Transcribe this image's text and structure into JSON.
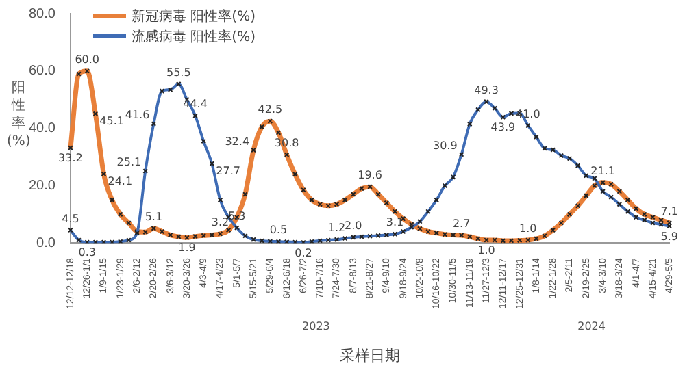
{
  "chart_data": {
    "type": "line",
    "ylabel": "阳性率(%)",
    "xlabel": "采样日期",
    "categories": [
      "12/12-12/18",
      null,
      "12/26-1/1",
      null,
      "1/9-1/15",
      null,
      "1/23-1/29",
      null,
      "2/6-2/12",
      null,
      "2/20-2/26",
      null,
      "3/6-3/12",
      null,
      "3/20-3/26",
      null,
      "4/3-4/9",
      null,
      "4/17-4/23",
      null,
      "5/1-5/7",
      null,
      "5/15-5/21",
      null,
      "5/29-6/4",
      null,
      "6/12-6/18",
      null,
      "6/26-7/2",
      null,
      "7/10-7/16",
      null,
      "7/24-7/30",
      null,
      "8/7-8/13",
      null,
      "8/21-8/27",
      null,
      "9/4-9/10",
      null,
      "9/18-9/24",
      null,
      "10/2-10/8",
      null,
      "10/16-10/22",
      null,
      "10/30-11/5",
      null,
      "11/13-11/19",
      null,
      "11/27-12/3",
      null,
      "12/11-12/17",
      null,
      "12/25-12/31",
      null,
      "1/8-1/14",
      null,
      "1/22-1/28",
      null,
      "2/5-2/11",
      null,
      "2/19-2/25",
      null,
      "3/4-3/10",
      null,
      "3/18-3/24",
      null,
      "4/1-4/7",
      null,
      "4/15-4/21",
      null,
      "4/29-5/5"
    ],
    "series": [
      {
        "name": "新冠病毒 阳性率(%)",
        "color": "#e8803a",
        "values": [
          33.2,
          59,
          60.0,
          45.1,
          24.1,
          15,
          10,
          7,
          4,
          3.8,
          5.1,
          4,
          2.8,
          2.2,
          1.9,
          2.3,
          2.6,
          2.8,
          3.2,
          4.5,
          9,
          17,
          32.4,
          40.5,
          42.5,
          38.5,
          30.8,
          24,
          18.5,
          15,
          13.5,
          13,
          13.5,
          15,
          17,
          19,
          19.6,
          17,
          14,
          11,
          8.5,
          6.5,
          5,
          4,
          3.5,
          3,
          2.8,
          2.7,
          2.2,
          1.5,
          1.0,
          1.0,
          0.8,
          0.8,
          0.9,
          1.0,
          1.5,
          2.5,
          4.5,
          7,
          10,
          13,
          16.5,
          20,
          21.1,
          20.5,
          18,
          15,
          12,
          10,
          9,
          8,
          7.1
        ],
        "value_labels": [
          "33.2",
          null,
          "60.0",
          "45.1",
          "24.1",
          null,
          null,
          null,
          null,
          null,
          "5.1",
          null,
          null,
          null,
          "1.9",
          null,
          null,
          null,
          "3.2",
          null,
          null,
          null,
          "32.4",
          null,
          "42.5",
          null,
          "30.8",
          null,
          null,
          null,
          null,
          null,
          null,
          null,
          null,
          null,
          "19.6",
          null,
          null,
          null,
          null,
          null,
          null,
          null,
          null,
          null,
          null,
          "2.7",
          null,
          null,
          "1.0",
          null,
          null,
          null,
          null,
          "1.0",
          null,
          null,
          null,
          null,
          null,
          null,
          null,
          null,
          "21.1",
          null,
          null,
          null,
          null,
          null,
          null,
          null,
          "7.1"
        ]
      },
      {
        "name": "流感病毒 阳性率(%)",
        "color": "#3f6cb5",
        "values": [
          4.5,
          1.0,
          0.3,
          0.3,
          0.3,
          0.3,
          0.5,
          1.0,
          3.5,
          25.1,
          41.6,
          53,
          53.5,
          55.5,
          50,
          44.4,
          35.5,
          27.7,
          15,
          9,
          5.3,
          2.5,
          1.2,
          0.8,
          0.6,
          0.5,
          0.4,
          0.3,
          0.2,
          0.5,
          0.8,
          1.0,
          1.2,
          1.6,
          2.0,
          2.2,
          2.4,
          2.6,
          2.8,
          3.1,
          4,
          5.5,
          7.5,
          11,
          15,
          20,
          23,
          30.9,
          41.5,
          46.5,
          49.3,
          47,
          43.9,
          45.2,
          45.3,
          41.0,
          37,
          33,
          32.5,
          30.5,
          29.5,
          27,
          23.5,
          22.5,
          18,
          16,
          13.5,
          11,
          9,
          8,
          7,
          6.5,
          5.9
        ],
        "value_labels": [
          "4.5",
          null,
          "0.3",
          null,
          null,
          null,
          null,
          null,
          null,
          "25.1",
          "41.6",
          null,
          null,
          "55.5",
          null,
          "44.4",
          null,
          "27.7",
          null,
          null,
          "5.3",
          null,
          null,
          null,
          null,
          "0.5",
          null,
          null,
          "0.2",
          null,
          null,
          null,
          "1.2",
          null,
          "2.0",
          null,
          null,
          null,
          null,
          "3.1",
          null,
          null,
          null,
          null,
          null,
          null,
          null,
          "30.9",
          null,
          null,
          "49.3",
          null,
          "43.9",
          null,
          null,
          "41.0",
          null,
          null,
          null,
          null,
          null,
          null,
          null,
          null,
          null,
          null,
          null,
          null,
          null,
          null,
          null,
          null,
          "5.9"
        ]
      }
    ],
    "ylim": [
      0,
      80
    ],
    "yticks": [
      {
        "value": 0,
        "label": "0.0"
      },
      {
        "value": 20,
        "label": "20.0"
      },
      {
        "value": 40,
        "label": "40.0"
      },
      {
        "value": 60,
        "label": "60.0"
      },
      {
        "value": 80,
        "label": "80.0"
      }
    ],
    "annotations": [
      "2023",
      "2024"
    ],
    "grid": false,
    "legend": "top left",
    "marker": "cross",
    "line_style": "solid"
  }
}
